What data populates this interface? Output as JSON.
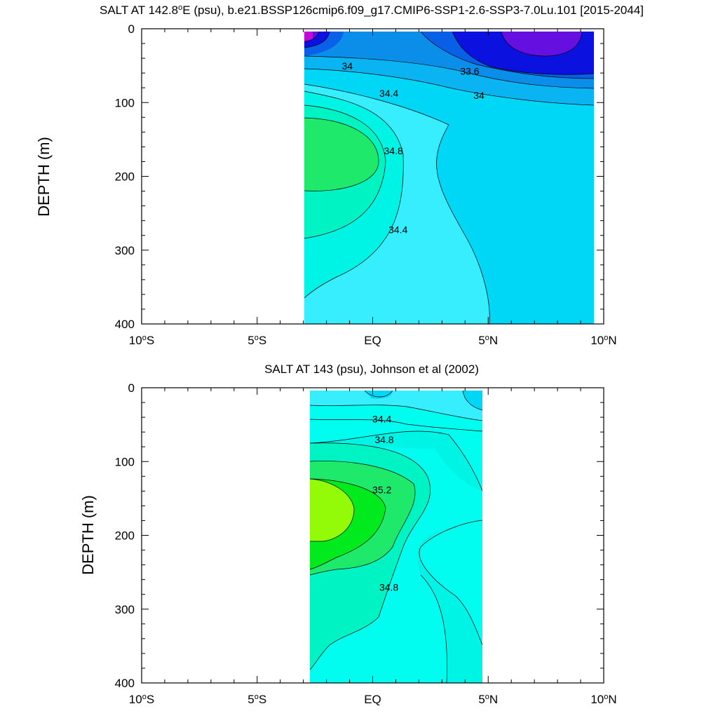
{
  "chart_data": [
    {
      "type": "contour",
      "title_text": "SALT AT 142.8",
      "title_degree": "o",
      "title_rest": "E (psu), b.e21.BSSP126cmip6.f09_g17.CMIP6-SSP1-2.6-SSP3-7.0Lu.101 [2015-2044]",
      "ylabel": "DEPTH (m)",
      "xlim": [
        -10,
        10
      ],
      "ylim": [
        400,
        0
      ],
      "data_extent_x": [
        -3.2,
        10
      ],
      "xticks": [
        {
          "main": "10",
          "deg": "o",
          "suffix": "S"
        },
        {
          "main": "5",
          "deg": "o",
          "suffix": "S"
        },
        {
          "main": "EQ",
          "deg": "",
          "suffix": ""
        },
        {
          "main": "5",
          "deg": "o",
          "suffix": "N"
        },
        {
          "main": "10",
          "deg": "o",
          "suffix": "N"
        }
      ],
      "xtick_values": [
        -10,
        -5,
        0,
        5,
        10
      ],
      "yticks": [
        "0",
        "100",
        "200",
        "300",
        "400"
      ],
      "ytick_values": [
        0,
        100,
        200,
        300,
        400
      ],
      "contour_labels": [
        {
          "text": "34",
          "lon": -1.1,
          "depth": 55
        },
        {
          "text": "33.6",
          "lon": 4.2,
          "depth": 62
        },
        {
          "text": "34.4",
          "lon": 0.7,
          "depth": 92
        },
        {
          "text": "34",
          "lon": 4.6,
          "depth": 95
        },
        {
          "text": "34.8",
          "lon": 0.9,
          "depth": 170
        },
        {
          "text": "34.4",
          "lon": 1.1,
          "depth": 277
        }
      ]
    },
    {
      "type": "contour",
      "title_text": "SALT AT 143 (psu), Johnson et al (2002)",
      "ylabel": "DEPTH (m)",
      "xlim": [
        -10,
        10
      ],
      "ylim": [
        400,
        0
      ],
      "data_extent_x": [
        -2.9,
        5
      ],
      "xticks": [
        {
          "main": "10",
          "deg": "o",
          "suffix": "S"
        },
        {
          "main": "5",
          "deg": "o",
          "suffix": "S"
        },
        {
          "main": "EQ",
          "deg": "",
          "suffix": ""
        },
        {
          "main": "5",
          "deg": "o",
          "suffix": "N"
        },
        {
          "main": "10",
          "deg": "o",
          "suffix": "N"
        }
      ],
      "xtick_values": [
        -10,
        -5,
        0,
        5,
        10
      ],
      "yticks": [
        "0",
        "100",
        "200",
        "300",
        "400"
      ],
      "ytick_values": [
        0,
        100,
        200,
        300,
        400
      ],
      "contour_labels": [
        {
          "text": "34.4",
          "lon": 0.4,
          "depth": 47
        },
        {
          "text": "34.8",
          "lon": 0.5,
          "depth": 75
        },
        {
          "text": "35.2",
          "lon": 0.4,
          "depth": 143
        },
        {
          "text": "34.8",
          "lon": 0.7,
          "depth": 275
        }
      ]
    }
  ]
}
